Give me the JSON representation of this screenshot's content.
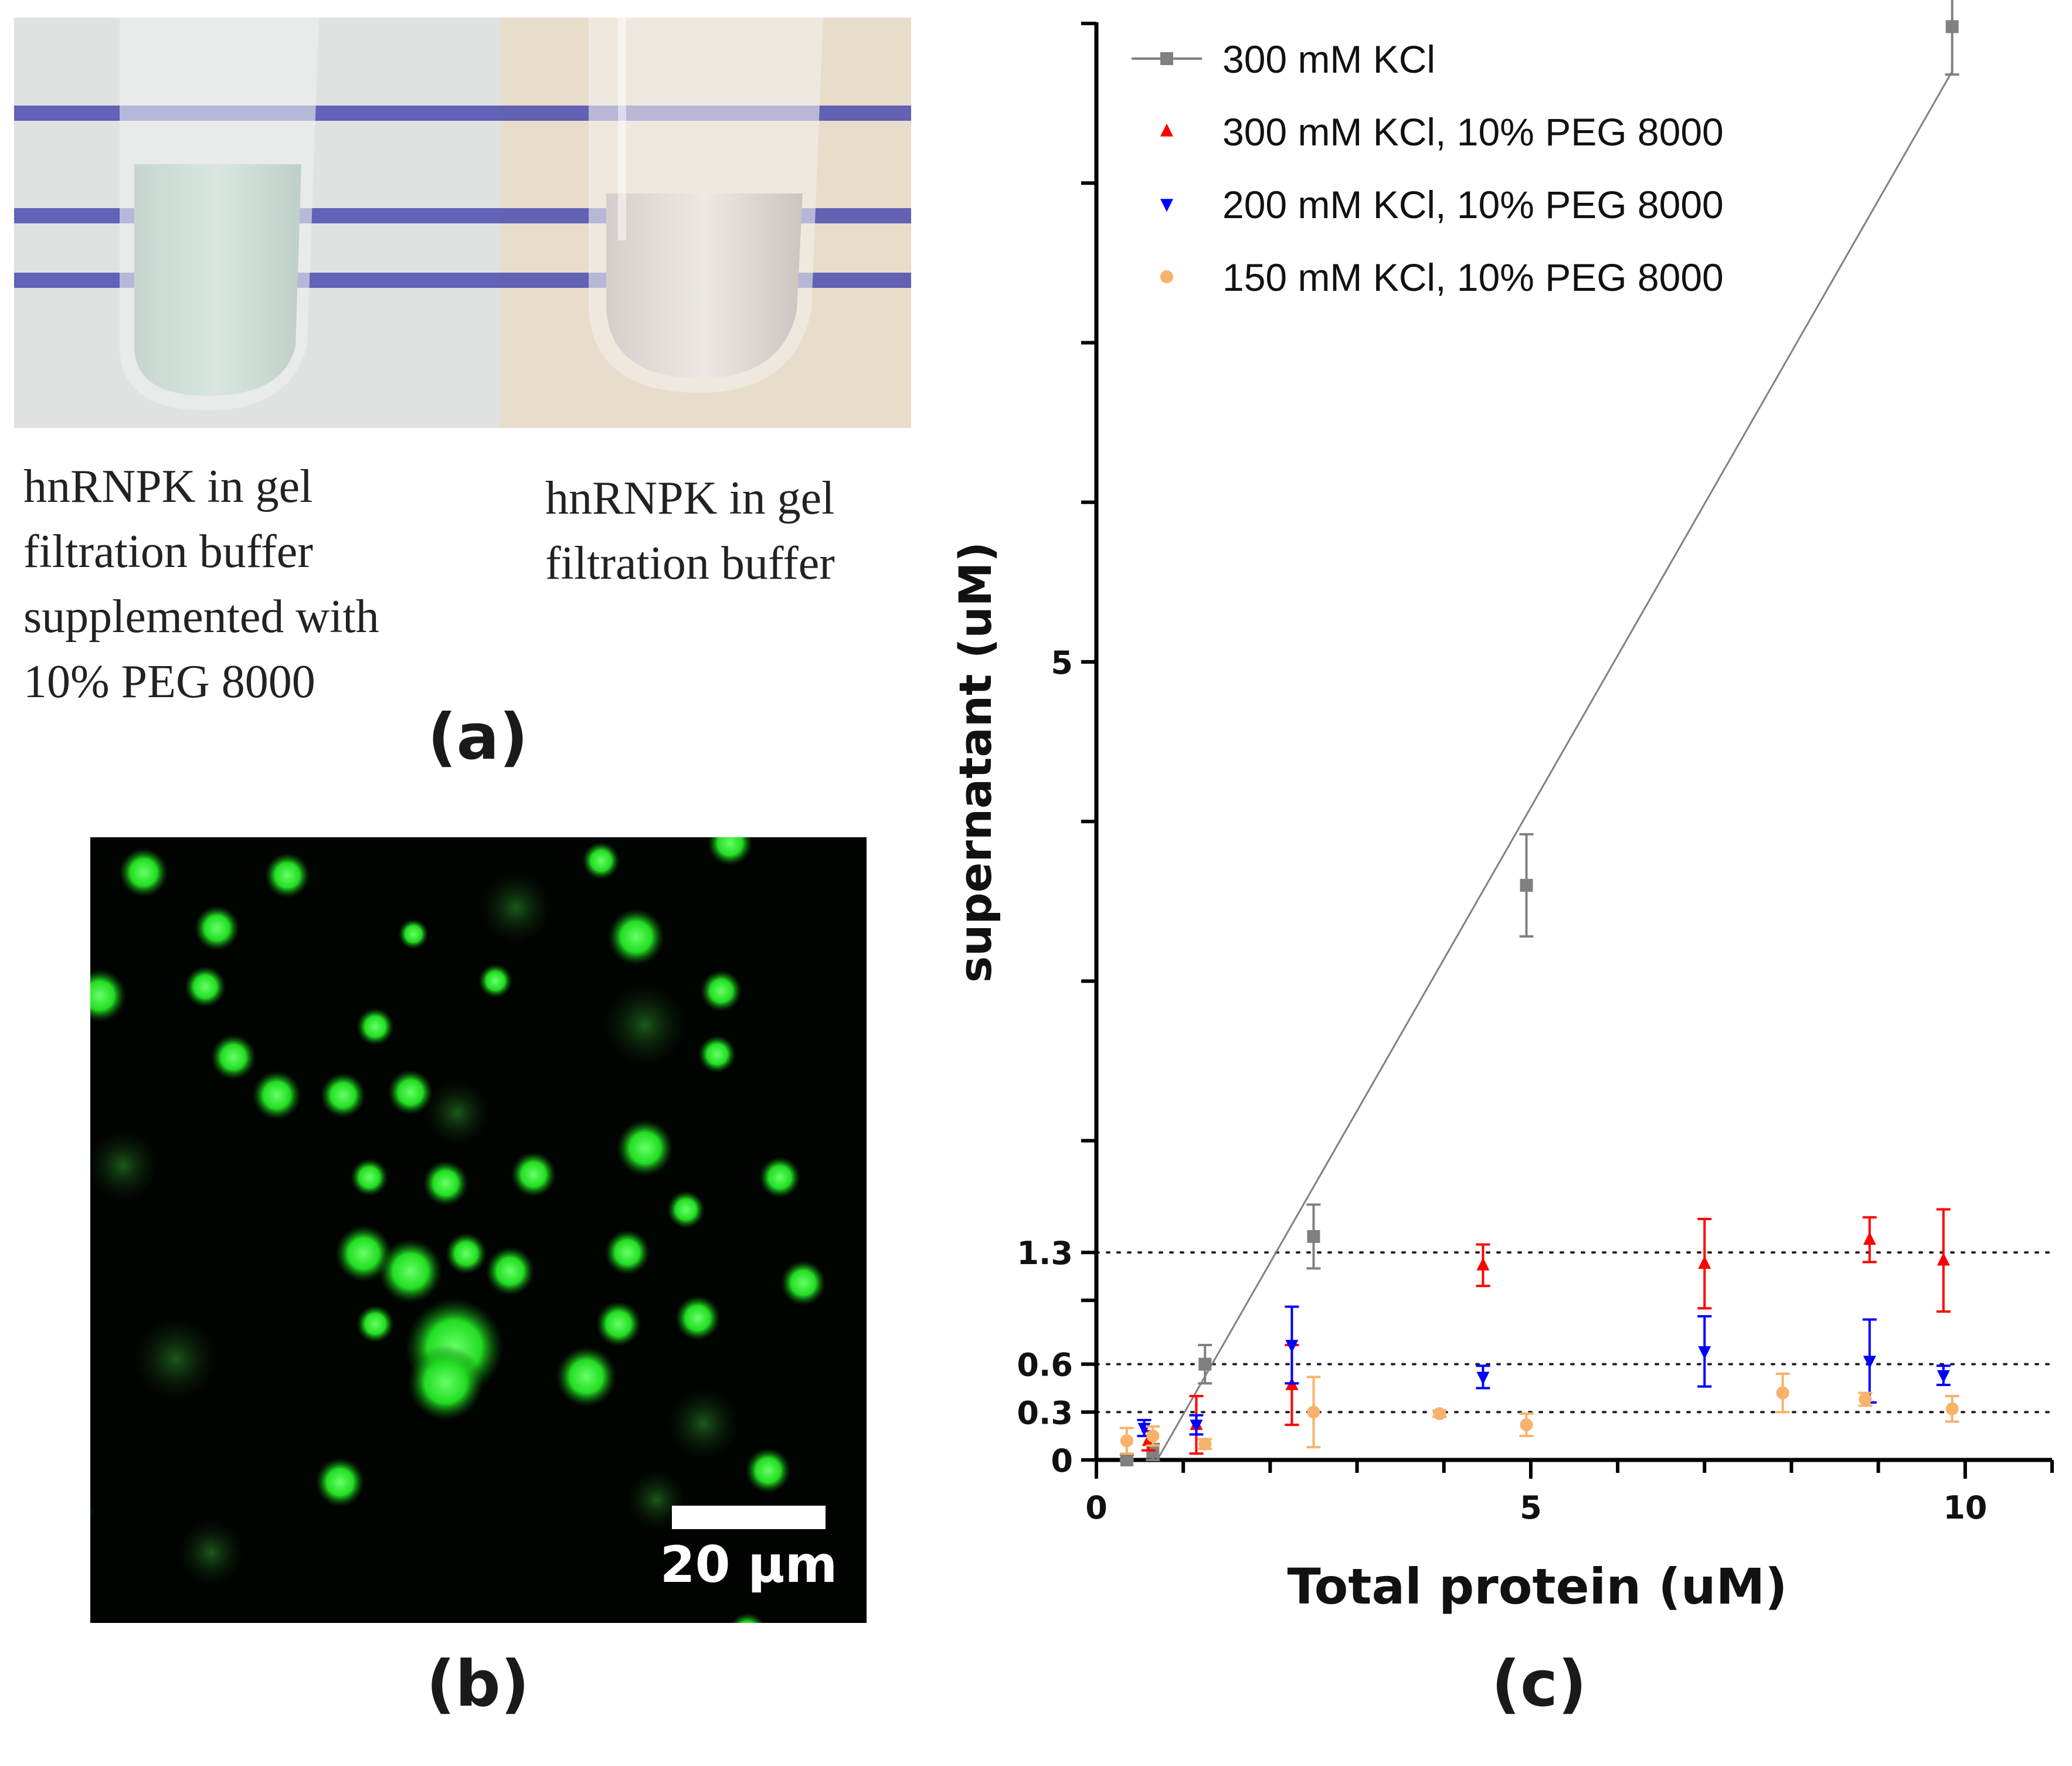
{
  "panel_a": {
    "caption_left": "hnRNPK in gel\nfiltration buffer\nsupplemented with\n10% PEG 8000",
    "caption_right": "hnRNPK in gel\nfiltration buffer",
    "label": "(a)"
  },
  "panel_b": {
    "scale_bar_label": "20 µm",
    "label": "(b)"
  },
  "panel_c": {
    "label": "(c)"
  },
  "chart_data": {
    "type": "scatter",
    "xlabel": "Total protein (uM)",
    "ylabel": "supernatant (uM)",
    "xlim": [
      0,
      11
    ],
    "ylim": [
      0,
      9
    ],
    "x_ticks": [
      0,
      5,
      10
    ],
    "y_ticks": [
      0,
      0.3,
      0.6,
      1.3,
      5
    ],
    "y_tick_labels": [
      "0",
      "0.3",
      "0.6",
      "1.3",
      "5"
    ],
    "reference_lines": [
      0.3,
      0.6,
      1.3
    ],
    "grid": false,
    "legend_position": "top-left",
    "series": [
      {
        "name": "300 mM KCl",
        "color": "#808080",
        "marker": "square",
        "x": [
          0.35,
          0.65,
          1.25,
          2.5,
          4.95,
          9.85
        ],
        "y": [
          0.0,
          0.05,
          0.6,
          1.4,
          3.6,
          8.98
        ],
        "err": [
          0.03,
          0.05,
          0.12,
          0.2,
          0.32,
          0.3
        ],
        "fit_line": {
          "x": [
            0.7,
            9.85
          ],
          "y": [
            0.0,
            8.7
          ]
        }
      },
      {
        "name": "300 mM KCl, 10% PEG 8000",
        "color": "#ff0000",
        "marker": "triangle-up",
        "x": [
          0.6,
          1.15,
          2.25,
          4.45,
          7.0,
          8.9,
          9.75
        ],
        "y": [
          0.12,
          0.22,
          0.47,
          1.22,
          1.23,
          1.38,
          1.25
        ],
        "err": [
          0.06,
          0.18,
          0.25,
          0.13,
          0.28,
          0.14,
          0.32
        ],
        "fit_line": null
      },
      {
        "name": "200 mM KCl, 10% PEG 8000",
        "color": "#0000ff",
        "marker": "triangle-down",
        "x": [
          0.55,
          1.15,
          2.25,
          4.45,
          7.0,
          8.9,
          9.75
        ],
        "y": [
          0.2,
          0.22,
          0.72,
          0.52,
          0.68,
          0.62,
          0.53
        ],
        "err": [
          0.05,
          0.06,
          0.24,
          0.07,
          0.22,
          0.26,
          0.06
        ],
        "fit_line": null
      },
      {
        "name": "150 mM KCl, 10% PEG 8000",
        "color": "#f7b26b",
        "marker": "circle",
        "x": [
          0.35,
          0.65,
          1.25,
          2.5,
          3.95,
          4.95,
          7.9,
          8.85,
          9.85
        ],
        "y": [
          0.12,
          0.15,
          0.1,
          0.3,
          0.29,
          0.22,
          0.42,
          0.38,
          0.32
        ],
        "err": [
          0.08,
          0.06,
          0.03,
          0.22,
          0.02,
          0.07,
          0.12,
          0.04,
          0.08
        ],
        "fit_line": null
      }
    ]
  }
}
